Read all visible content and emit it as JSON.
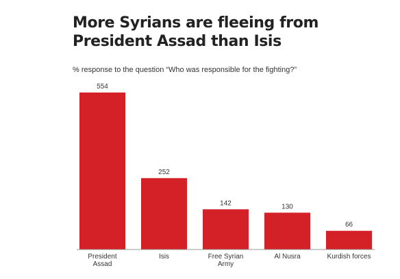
{
  "chart_data": {
    "type": "bar",
    "title": "More Syrians are fleeing from President Assad than Isis",
    "subtitle": "% response to the question “Who was responsible for the fighting?”",
    "categories": [
      "President Assad",
      "Isis",
      "Free Syrian Army",
      "Al Nusra",
      "Kurdish forces"
    ],
    "category_lines": [
      [
        "President",
        "Assad"
      ],
      [
        "Isis"
      ],
      [
        "Free Syrian",
        "Army"
      ],
      [
        "Al Nusra"
      ],
      [
        "Kurdish forces"
      ]
    ],
    "values": [
      554,
      252,
      142,
      130,
      66
    ],
    "xlabel": "",
    "ylabel": "",
    "ylim": [
      0,
      554
    ],
    "grid": false,
    "bar_color": "#d42128",
    "axis_color": "#999999"
  }
}
